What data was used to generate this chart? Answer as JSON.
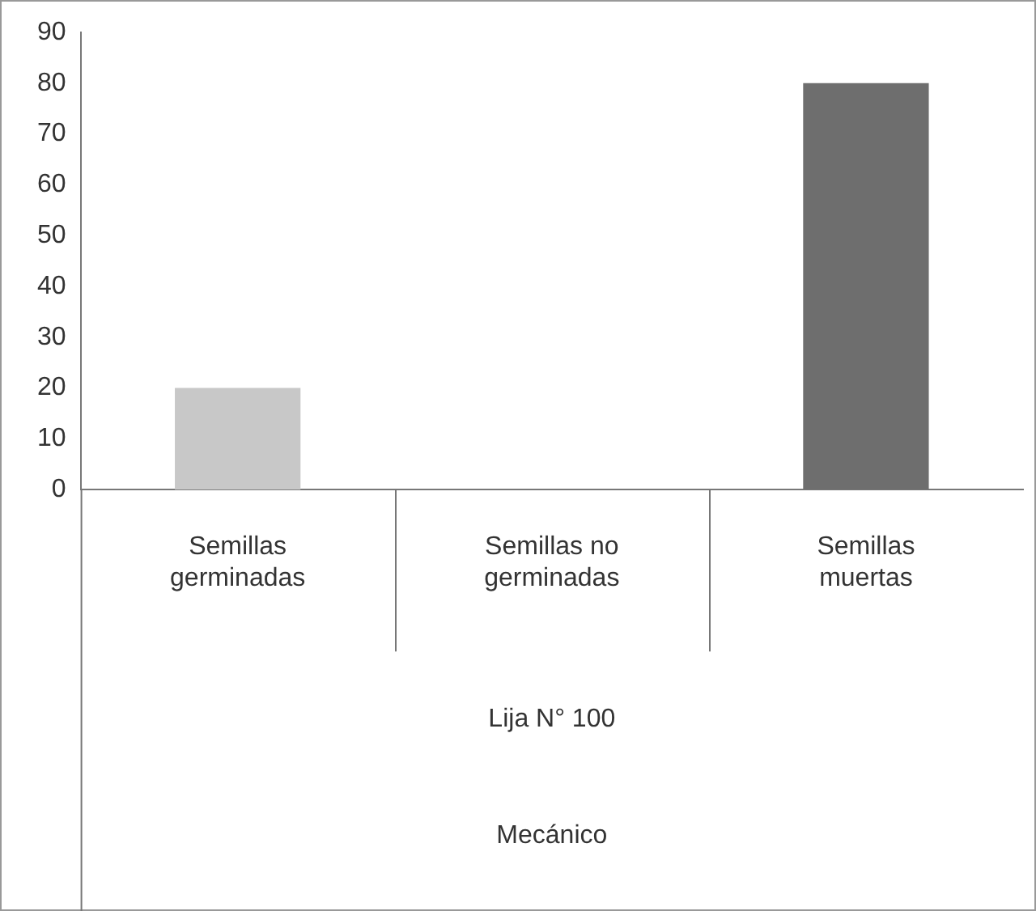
{
  "chart_data": {
    "type": "bar",
    "categories": [
      "Semillas germinadas",
      "Semillas no germinadas",
      "Semillas muertas"
    ],
    "values": [
      20,
      0,
      80
    ],
    "colors": [
      "#c8c8c8",
      "#a0a0a0",
      "#6e6e6e"
    ],
    "ylim": [
      0,
      90
    ],
    "yticks": [
      0,
      10,
      20,
      30,
      40,
      50,
      60,
      70,
      80,
      90
    ],
    "grid": false,
    "legend": false,
    "annotations": [
      "Lija N° 100",
      "Mecánico"
    ]
  }
}
